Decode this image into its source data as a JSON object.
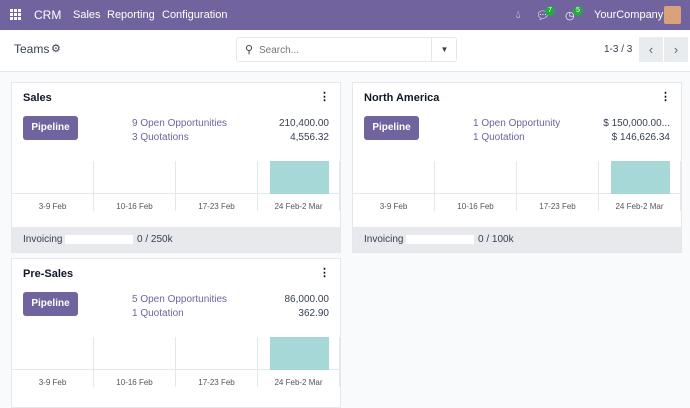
{
  "navbar": {
    "app": "CRM",
    "menus": [
      "Sales",
      "Reporting",
      "Configuration"
    ],
    "messages_count": "7",
    "activities_count": "5",
    "company": "YourCompany"
  },
  "control": {
    "breadcrumb": "Teams",
    "search_placeholder": "Search...",
    "pager": "1-3 / 3"
  },
  "colors": {
    "brand": "#71639e",
    "bar": "#a6d8d8",
    "badge": "#28a745"
  },
  "week_labels": [
    "3-9 Feb",
    "10-16 Feb",
    "17-23 Feb",
    "24 Feb-2 Mar"
  ],
  "teams": [
    {
      "name": "Sales",
      "button": "Pipeline",
      "opportunities": "9 Open Opportunities",
      "opportunities_amount": "210,400.00",
      "quotations": "3 Quotations",
      "quotations_amount": "4,556.32",
      "graph_levels": [
        0,
        0,
        0,
        1
      ],
      "invoicing_label": "Invoicing",
      "invoicing_progress": 0,
      "invoicing_value": "0 /  250k"
    },
    {
      "name": "North America",
      "button": "Pipeline",
      "opportunities": "1 Open Opportunity",
      "opportunities_amount": "$ 150,000.00...",
      "quotations": "1 Quotation",
      "quotations_amount": "$ 146,626.34",
      "graph_levels": [
        0,
        0,
        0,
        1
      ],
      "invoicing_label": "Invoicing",
      "invoicing_progress": 0,
      "invoicing_value": "0 /  100k"
    },
    {
      "name": "Pre-Sales",
      "button": "Pipeline",
      "opportunities": "5 Open Opportunities",
      "opportunities_amount": "86,000.00",
      "quotations": "1 Quotation",
      "quotations_amount": "362.90",
      "graph_levels": [
        0,
        0,
        0,
        1
      ]
    }
  ]
}
